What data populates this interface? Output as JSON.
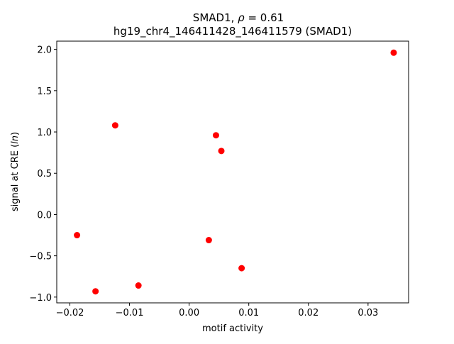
{
  "chart_data": {
    "type": "scatter",
    "title": "SMAD1, ρ = 0.61",
    "title_parts": {
      "prefix": "SMAD1, ",
      "rho": "ρ",
      "suffix": " = 0.61"
    },
    "subtitle": "hg19_chr4_146411428_146411579 (SMAD1)",
    "xlabel": "motif activity",
    "ylabel": "signal at CRE (ln)",
    "ylabel_parts": {
      "prefix": "signal at CRE (",
      "italic": "ln",
      "suffix": ")"
    },
    "xlim": [
      -0.0222,
      0.0368
    ],
    "ylim": [
      -1.07,
      2.1
    ],
    "xticks": [
      {
        "value": -0.02,
        "label": "−0.02"
      },
      {
        "value": -0.01,
        "label": "−0.01"
      },
      {
        "value": 0.0,
        "label": "0.00"
      },
      {
        "value": 0.01,
        "label": "0.01"
      },
      {
        "value": 0.02,
        "label": "0.02"
      },
      {
        "value": 0.03,
        "label": "0.03"
      }
    ],
    "yticks": [
      {
        "value": -1.0,
        "label": "−1.0"
      },
      {
        "value": -0.5,
        "label": "−0.5"
      },
      {
        "value": 0.0,
        "label": "0.0"
      },
      {
        "value": 0.5,
        "label": "0.5"
      },
      {
        "value": 1.0,
        "label": "1.0"
      },
      {
        "value": 1.5,
        "label": "1.5"
      },
      {
        "value": 2.0,
        "label": "2.0"
      }
    ],
    "grid": false,
    "marker_color": "#ff0000",
    "points": [
      {
        "x": -0.0188,
        "y": -0.25
      },
      {
        "x": -0.0157,
        "y": -0.93
      },
      {
        "x": -0.0124,
        "y": 1.08
      },
      {
        "x": -0.0085,
        "y": -0.86
      },
      {
        "x": 0.0033,
        "y": -0.31
      },
      {
        "x": 0.0045,
        "y": 0.96
      },
      {
        "x": 0.0054,
        "y": 0.77
      },
      {
        "x": 0.0088,
        "y": -0.65
      },
      {
        "x": 0.0343,
        "y": 1.96
      }
    ]
  }
}
